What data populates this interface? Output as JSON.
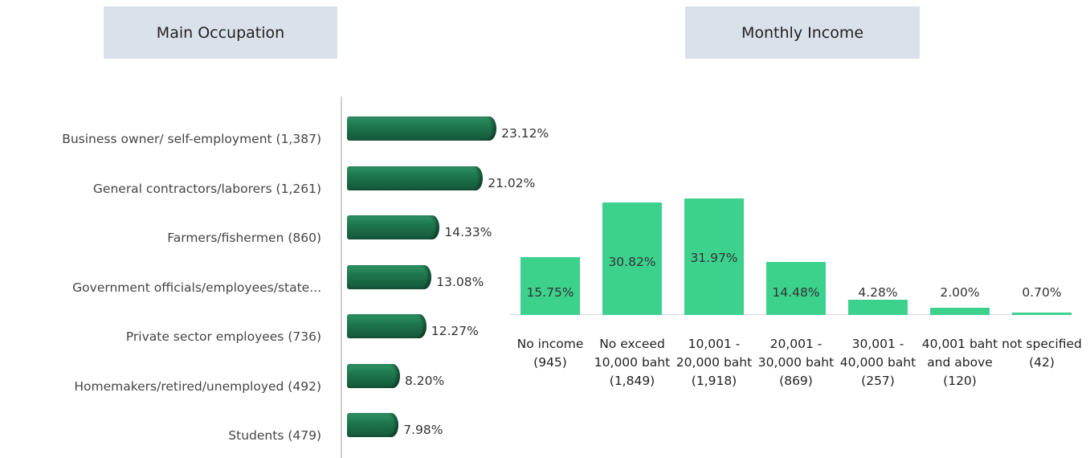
{
  "chart_data": [
    {
      "type": "hbar",
      "title": "Main Occupation",
      "categories": [
        "Business owner/ self-employment (1,387)",
        "General contractors/laborers (1,261)",
        "Farmers/fishermen (860)",
        "Government officials/employees/state...",
        "Private sector employees (736)",
        "Homemakers/retired/unemployed (492)",
        "Students (479)"
      ],
      "values": [
        23.12,
        21.02,
        14.33,
        13.08,
        12.27,
        8.2,
        7.98
      ],
      "value_labels": [
        "23.12%",
        "21.02%",
        "14.33%",
        "13.08%",
        "12.27%",
        "8.20%",
        "7.98%"
      ],
      "color": "#1f7a4f"
    },
    {
      "type": "bar",
      "title": "Monthly Income",
      "categories": [
        "No income (945)",
        "No exceed 10,000 baht (1,849)",
        "10,001 - 20,000 baht (1,918)",
        "20,001 - 30,000 baht (869)",
        "30,001 - 40,000 baht (257)",
        "40,001 baht and above (120)",
        "not specified (42)"
      ],
      "values": [
        15.75,
        30.82,
        31.97,
        14.48,
        4.28,
        2.0,
        0.7
      ],
      "value_labels": [
        "15.75%",
        "30.82%",
        "31.97%",
        "14.48%",
        "4.28%",
        "2.00%",
        "0.70%"
      ],
      "color": "#3dd18e"
    }
  ]
}
